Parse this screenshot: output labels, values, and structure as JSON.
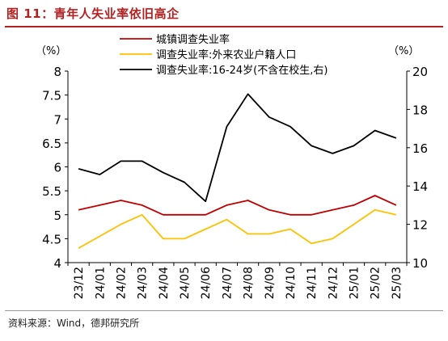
{
  "figure": {
    "title": "图 11：青年人失业率依旧高企",
    "source": "资料来源：Wind，德邦研究所"
  },
  "chart_data": {
    "type": "line",
    "categories": [
      "23/12",
      "24/01",
      "24/02",
      "24/03",
      "24/04",
      "24/05",
      "24/06",
      "24/07",
      "24/08",
      "24/09",
      "24/10",
      "24/11",
      "24/12",
      "25/01",
      "25/02",
      "25/03"
    ],
    "left_axis": {
      "unit_label": "（%）",
      "ylim": [
        4,
        8
      ],
      "ticks": [
        "4",
        "4.5",
        "5",
        "5.5",
        "6",
        "6.5",
        "7",
        "7.5",
        "8"
      ]
    },
    "right_axis": {
      "unit_label": "（%）",
      "ylim": [
        10,
        20
      ],
      "ticks": [
        "10",
        "12",
        "14",
        "16",
        "18",
        "20"
      ]
    },
    "series": [
      {
        "name": "城镇调查失业率",
        "axis": "left",
        "color": "#c00000",
        "values": [
          5.1,
          5.2,
          5.3,
          5.2,
          5.0,
          5.0,
          5.0,
          5.2,
          5.3,
          5.1,
          5.0,
          5.0,
          5.1,
          5.2,
          5.4,
          5.2
        ]
      },
      {
        "name": "调查失业率:外来农业户籍人口",
        "axis": "left",
        "color": "#ffc000",
        "values": [
          4.3,
          4.55,
          4.8,
          5.0,
          4.5,
          4.5,
          4.7,
          4.9,
          4.6,
          4.6,
          4.7,
          4.4,
          4.5,
          4.8,
          5.1,
          5.0
        ]
      },
      {
        "name": "调查失业率:16-24岁(不含在校生,右)",
        "axis": "right",
        "color": "#000000",
        "values": [
          14.9,
          14.6,
          15.3,
          15.3,
          14.7,
          14.2,
          13.2,
          17.1,
          18.8,
          17.6,
          17.1,
          16.1,
          15.7,
          16.1,
          16.9,
          16.5
        ]
      }
    ],
    "legend_position": "top-center",
    "grid": false
  }
}
